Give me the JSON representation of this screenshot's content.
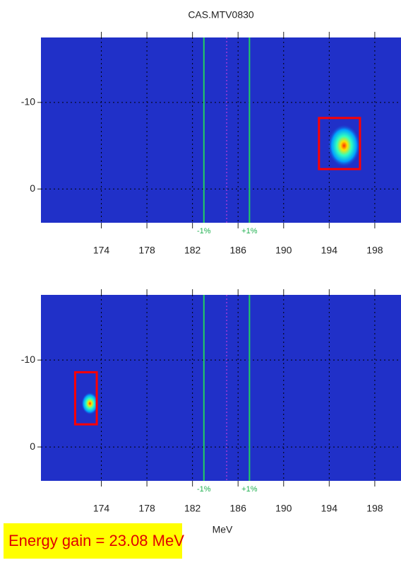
{
  "chart_data": [
    {
      "type": "scatter",
      "title": "CAS.MTV0830",
      "x": [
        195.3
      ],
      "values": [
        -5
      ],
      "roi_x": [
        193.1,
        196.7
      ],
      "roi_y": [
        -8.2,
        -2.3
      ],
      "xlim": [
        168.7,
        200.3
      ],
      "ylim": [
        3.9,
        -17.5
      ],
      "xticks": [
        174,
        178,
        182,
        186,
        190,
        194,
        198
      ],
      "yticks": [
        0,
        -10
      ],
      "markers": [
        {
          "x": 183,
          "label": "-1%"
        },
        {
          "x": 187,
          "label": "+1%"
        }
      ],
      "center": 185,
      "grid": true
    },
    {
      "type": "scatter",
      "xlabel": "MeV",
      "x": [
        173
      ],
      "values": [
        -5
      ],
      "roi_x": [
        171.7,
        173.6
      ],
      "roi_y": [
        -8.6,
        -2.6
      ],
      "xlim": [
        168.7,
        200.3
      ],
      "ylim": [
        3.9,
        -17.5
      ],
      "xticks": [
        174,
        178,
        182,
        186,
        190,
        194,
        198
      ],
      "yticks": [
        0,
        -10
      ],
      "markers": [
        {
          "x": 183,
          "label": "-1%"
        },
        {
          "x": 187,
          "label": "+1%"
        }
      ],
      "center": 185,
      "grid": true
    }
  ],
  "annotation": "Energy gain = 23.08 MeV"
}
